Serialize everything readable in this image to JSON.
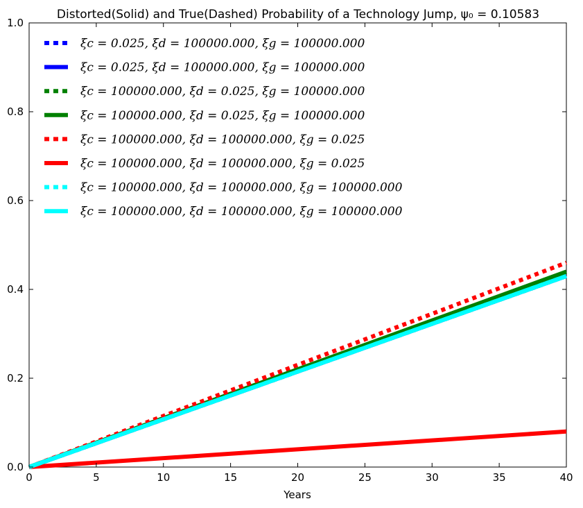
{
  "chart_data": {
    "type": "line",
    "title": "Distorted(Solid) and True(Dashed) Probability of a Technology Jump, ψ₀ = 0.10583",
    "xlabel": "Years",
    "ylabel": "",
    "xlim": [
      0,
      40
    ],
    "ylim": [
      0,
      1.0
    ],
    "xticks": [
      0,
      5,
      10,
      15,
      20,
      25,
      30,
      35,
      40
    ],
    "yticks": [
      0.0,
      0.2,
      0.4,
      0.6,
      0.8,
      1.0
    ],
    "xtick_labels": [
      "0",
      "5",
      "10",
      "15",
      "20",
      "25",
      "30",
      "35",
      "40"
    ],
    "ytick_labels": [
      "0.0",
      "0.2",
      "0.4",
      "0.6",
      "0.8",
      "1.0"
    ],
    "grid": false,
    "legend": "top-left",
    "x": [
      0,
      40
    ],
    "series": [
      {
        "name": "ξc = 0.025, ξd = 100000.000, ξg = 100000.000",
        "style": "dashed",
        "color": "#0000ff",
        "values": [
          0,
          0.43
        ]
      },
      {
        "name": "ξc = 0.025, ξd = 100000.000, ξg = 100000.000",
        "style": "solid",
        "color": "#0000ff",
        "values": [
          0,
          0.43
        ]
      },
      {
        "name": "ξc = 100000.000, ξd = 0.025, ξg = 100000.000",
        "style": "dashed",
        "color": "#008000",
        "values": [
          0,
          0.43
        ]
      },
      {
        "name": "ξc = 100000.000, ξd = 0.025, ξg = 100000.000",
        "style": "solid",
        "color": "#008000",
        "values": [
          0,
          0.44
        ]
      },
      {
        "name": "ξc = 100000.000, ξd = 100000.000, ξg = 0.025",
        "style": "dashed",
        "color": "#ff0000",
        "values": [
          0,
          0.46
        ]
      },
      {
        "name": "ξc = 100000.000, ξd = 100000.000, ξg = 0.025",
        "style": "solid",
        "color": "#ff0000",
        "values": [
          0,
          0.08
        ]
      },
      {
        "name": "ξc = 100000.000, ξd = 100000.000, ξg = 100000.000",
        "style": "dashed",
        "color": "#00ffff",
        "values": [
          0,
          0.43
        ]
      },
      {
        "name": "ξc = 100000.000, ξd = 100000.000, ξg = 100000.000",
        "style": "solid",
        "color": "#00ffff",
        "values": [
          0,
          0.43
        ]
      }
    ]
  }
}
